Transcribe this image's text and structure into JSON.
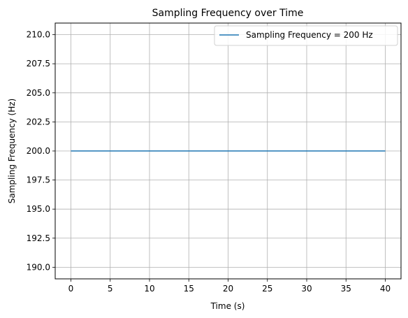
{
  "chart_data": {
    "type": "line",
    "title": "Sampling Frequency over Time",
    "xlabel": "Time (s)",
    "ylabel": "Sampling Frequency (Hz)",
    "xlim": [
      -2,
      42
    ],
    "ylim": [
      189,
      211
    ],
    "xticks": [
      0,
      5,
      10,
      15,
      20,
      25,
      30,
      35,
      40
    ],
    "yticks": [
      190.0,
      192.5,
      195.0,
      197.5,
      200.0,
      202.5,
      205.0,
      207.5,
      210.0
    ],
    "grid": true,
    "legend_position": "top-right",
    "series": [
      {
        "name": "Sampling Frequency = 200 Hz",
        "color": "#1f77b4",
        "x": [
          0,
          40
        ],
        "y": [
          200,
          200
        ]
      }
    ]
  }
}
